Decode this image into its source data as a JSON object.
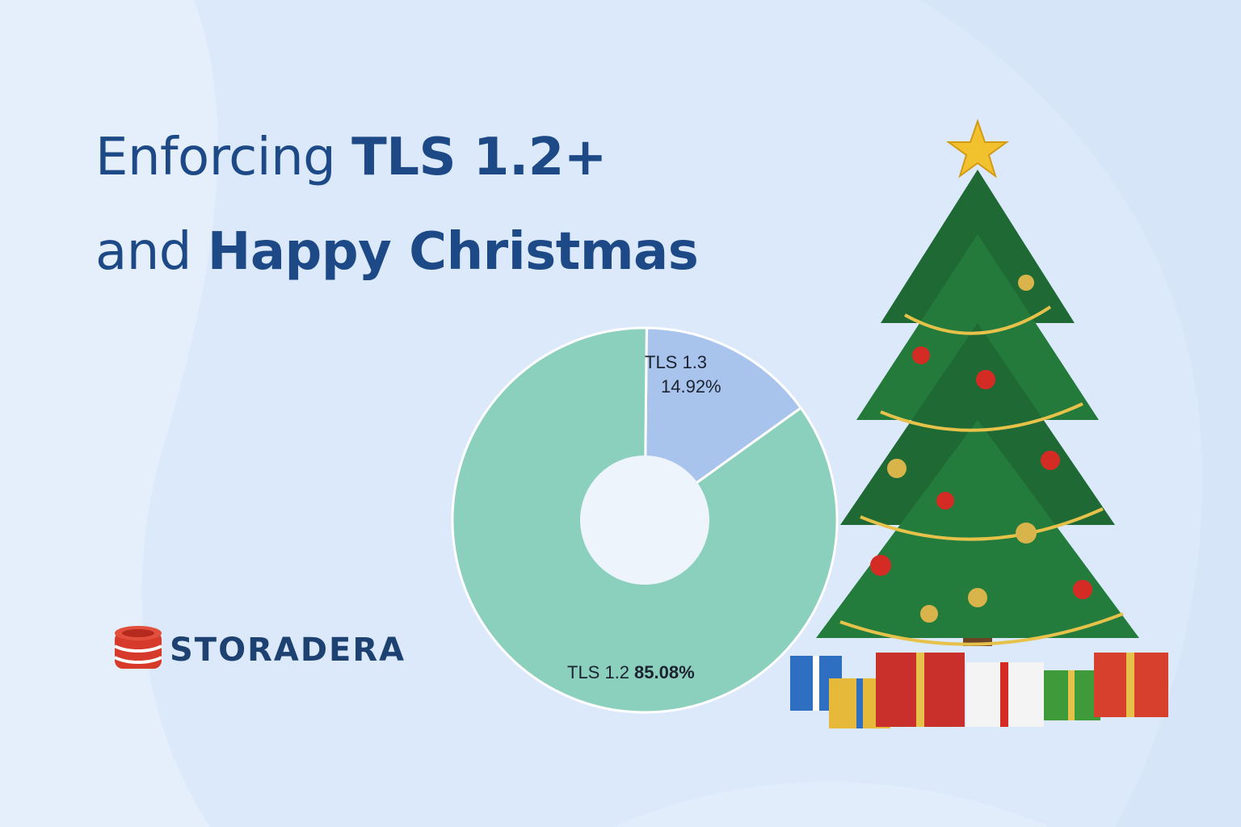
{
  "headline": {
    "line1_prefix": "Enforcing ",
    "line1_bold": "TLS 1.2+",
    "line2_prefix": "and ",
    "line2_bold": "Happy Christmas"
  },
  "logo": {
    "wordmark": "STORADERA",
    "icon": "database-cylinder-logo-icon"
  },
  "illustration": {
    "subject": "christmas-tree-with-gifts",
    "star": "star-icon"
  },
  "colors": {
    "background": "#dce9fb",
    "headline": "#1d4a86",
    "tls12": "#8bcfbd",
    "tls13": "#a8c3ec",
    "donut_hole": "#eef4fc",
    "logo_red": "#d63a2a",
    "logo_navy": "#1d4272"
  },
  "chart_data": {
    "type": "pie",
    "style": "donut",
    "title": "",
    "slices": [
      {
        "name": "TLS 1.3",
        "value": 14.92,
        "label": "14.92%",
        "color": "#a8c3ec"
      },
      {
        "name": "TLS 1.2",
        "value": 85.08,
        "label": "85.08%",
        "color": "#8bcfbd"
      }
    ]
  }
}
